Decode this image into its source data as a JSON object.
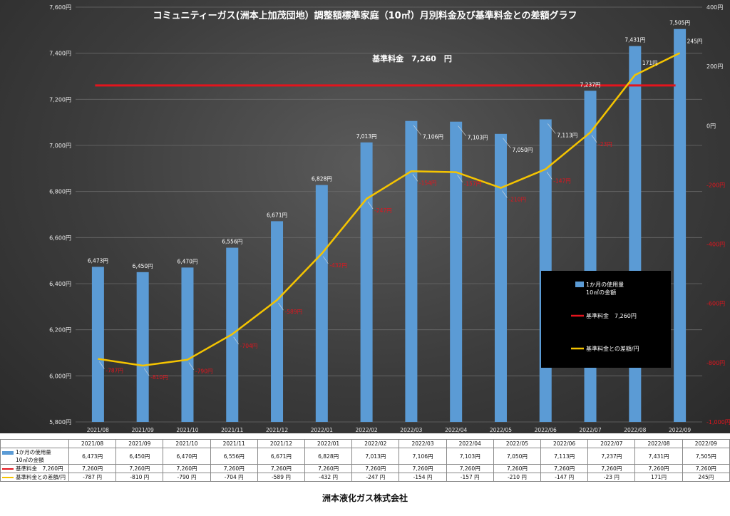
{
  "chart_data": {
    "type": "bar+line",
    "title": "コミュニティーガス(洲本上加茂団地）調整額標準家庭（10㎥）月別料金及び基準料金との差額グラフ",
    "categories": [
      "2021/08",
      "2021/09",
      "2021/10",
      "2021/11",
      "2021/12",
      "2022/01",
      "2022/02",
      "2022/03",
      "2022/04",
      "2022/05",
      "2022/06",
      "2022/07",
      "2022/08",
      "2022/09"
    ],
    "ylim": [
      5800,
      7600
    ],
    "y_ticks": [
      "5,800円",
      "6,000円",
      "6,200円",
      "6,400円",
      "6,600円",
      "6,800円",
      "7,000円",
      "7,200円",
      "7,400円",
      "7,600円"
    ],
    "y2lim": [
      -1000,
      400
    ],
    "y2_ticks": [
      "-1,000円",
      "-800円",
      "-600円",
      "-400円",
      "-200円",
      "0円",
      "200円",
      "400円"
    ],
    "series": [
      {
        "name": "1か月の使用量\n10㎥の金額",
        "axis": "left",
        "kind": "bar",
        "color": "#5b9bd5",
        "values": [
          6473,
          6450,
          6470,
          6556,
          6671,
          6828,
          7013,
          7106,
          7103,
          7050,
          7113,
          7237,
          7431,
          7505
        ],
        "labels": [
          "6,473円",
          "6,450円",
          "6,470円",
          "6,556円",
          "6,671円",
          "6,828円",
          "7,013円",
          "7,106円",
          "7,103円",
          "7,050円",
          "7,113円",
          "7,237円",
          "7,431円",
          "7,505円"
        ]
      },
      {
        "name": "基準料金　7,260円",
        "axis": "left",
        "kind": "line",
        "color": "#e3141d",
        "values": [
          7260,
          7260,
          7260,
          7260,
          7260,
          7260,
          7260,
          7260,
          7260,
          7260,
          7260,
          7260,
          7260,
          7260
        ],
        "labels": [
          "7,260円",
          "7,260円",
          "7,260円",
          "7,260円",
          "7,260円",
          "7,260円",
          "7,260円",
          "7,260円",
          "7,260円",
          "7,260円",
          "7,260円",
          "7,260円",
          "7,260円",
          "7,260円"
        ]
      },
      {
        "name": "基準料金との差額/円",
        "axis": "right",
        "kind": "line",
        "color": "#f5c400",
        "values": [
          -787,
          -810,
          -790,
          -704,
          -589,
          -432,
          -247,
          -154,
          -157,
          -210,
          -147,
          -23,
          171,
          245
        ],
        "labels": [
          "-787円",
          "-810円",
          "-790円",
          "-704円",
          "-589円",
          "-432円",
          "-247円",
          "-154円",
          "-157円",
          "-210円",
          "-147円",
          "-23円",
          "171円",
          "245円"
        ],
        "table_labels": [
          "-787 円",
          "-810 円",
          "-790 円",
          "-704 円",
          "-589 円",
          "-432 円",
          "-247 円",
          "-154 円",
          "-157 円",
          "-210 円",
          "-147 円",
          "-23 円",
          "171円",
          "245円"
        ]
      }
    ],
    "annotation": "基準料金　7,260　円",
    "legend": {
      "position": "right",
      "labels": [
        "1か月の使用量",
        "10㎥の金額",
        "基準料金　7,260円",
        "基準料金との差額/円"
      ]
    },
    "table": {
      "row_labels": [
        "1か月の使用量",
        "10㎥の金額",
        "基準料金　7,260円",
        "基準料金との差額/円"
      ]
    },
    "grid": true,
    "colors": {
      "bar": "#5b9bd5",
      "base_line": "#e3141d",
      "diff_line": "#f5c400",
      "diff_label": "#e3141d"
    }
  },
  "footer": "洲本液化ガス株式会社"
}
